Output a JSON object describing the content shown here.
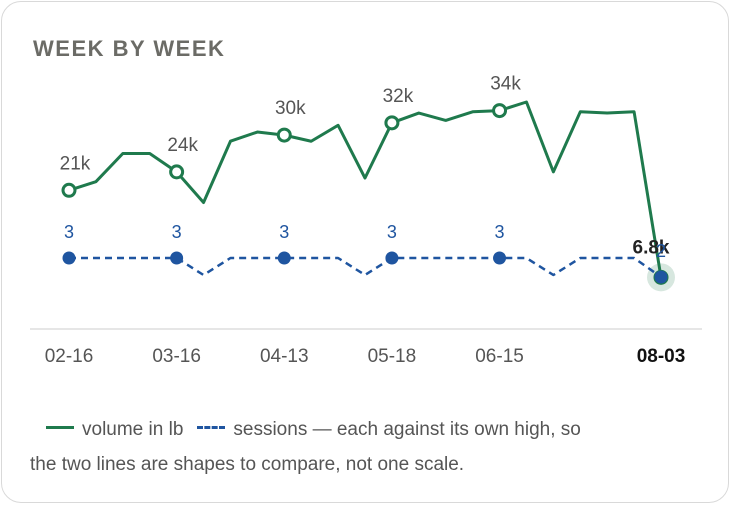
{
  "title": "WEEK BY WEEK",
  "legend": {
    "volume_label": "volume in lb",
    "sessions_label": "sessions — each against its own high, so",
    "note_line2": "the two lines are shapes to compare, not one scale."
  },
  "colors": {
    "volume": "#1f7a4d",
    "sessions": "#1f55a0",
    "axis_text": "#555555",
    "grid": "#cccccc"
  },
  "chart_data": {
    "type": "line",
    "x_ticks": [
      "02-16",
      "03-16",
      "04-13",
      "05-18",
      "06-15",
      "08-03"
    ],
    "highlight_tick": "08-03",
    "weeks": [
      "02-16",
      "02-23",
      "03-02",
      "03-09",
      "03-16",
      "03-23",
      "03-30",
      "04-06",
      "04-13",
      "04-20",
      "04-27",
      "05-04",
      "05-18",
      "05-25",
      "06-01",
      "06-08",
      "06-15",
      "06-22",
      "06-29",
      "07-06",
      "07-13",
      "07-20",
      "08-03"
    ],
    "series": [
      {
        "name": "volume in lb",
        "style": "solid",
        "values": [
          21000,
          22400,
          27000,
          27000,
          24000,
          19000,
          29000,
          30500,
          30000,
          29000,
          31600,
          23000,
          32000,
          33600,
          32400,
          33800,
          34000,
          35400,
          24000,
          33800,
          33600,
          33800,
          6800
        ],
        "labeled_points": [
          {
            "index": 0,
            "label": "21k"
          },
          {
            "index": 4,
            "label": "24k"
          },
          {
            "index": 8,
            "label": "30k"
          },
          {
            "index": 12,
            "label": "32k"
          },
          {
            "index": 16,
            "label": "34k"
          },
          {
            "index": 22,
            "label": "6.8k"
          }
        ]
      },
      {
        "name": "sessions",
        "style": "dashed",
        "values": [
          3,
          3,
          3,
          3,
          3,
          2,
          3,
          3,
          3,
          3,
          3,
          2,
          3,
          3,
          3,
          3,
          3,
          3,
          2,
          3,
          3,
          3,
          2
        ],
        "labeled_points": [
          {
            "index": 0,
            "label": "3"
          },
          {
            "index": 4,
            "label": "3"
          },
          {
            "index": 8,
            "label": "3"
          },
          {
            "index": 12,
            "label": "3"
          },
          {
            "index": 16,
            "label": "3"
          },
          {
            "index": 22,
            "label": "2"
          }
        ]
      }
    ]
  }
}
